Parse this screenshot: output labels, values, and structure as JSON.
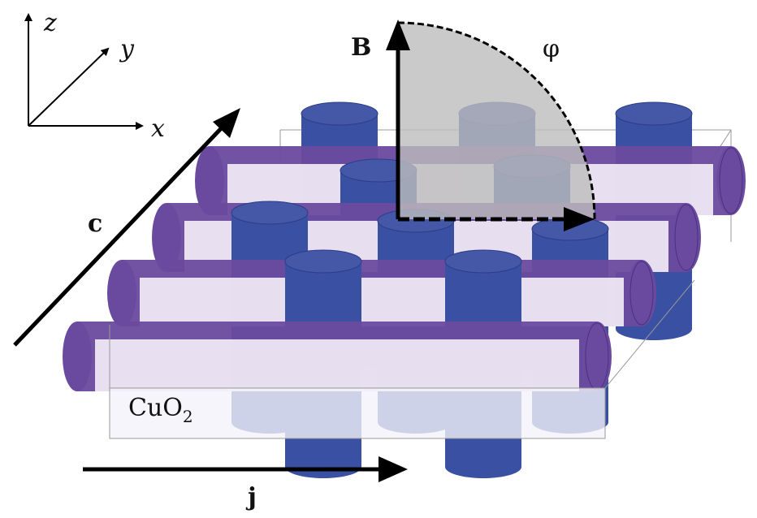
{
  "axes": {
    "z": "z",
    "y": "y",
    "x": "x"
  },
  "field": {
    "label": "B",
    "angle_label": "φ"
  },
  "c_axis": {
    "label": "c"
  },
  "current": {
    "label": "j"
  },
  "layer": {
    "label_main": "CuO",
    "label_sub": "2"
  },
  "colors": {
    "cylinder_blue": "#3a50a2",
    "tube_purple": "#6a4a9e",
    "tube_body": "#f1ebf6",
    "sector_gray": "#bdbdbd"
  }
}
